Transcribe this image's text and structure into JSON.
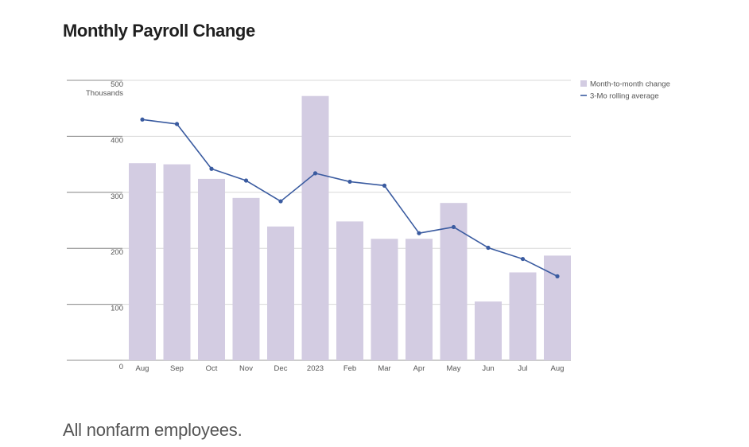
{
  "title": "Monthly Payroll Change",
  "caption": "All nonfarm employees.",
  "colors": {
    "bar": "#d3cce2",
    "line": "#3a5ba0",
    "grid": "#d8d8d8",
    "axis": "#555555"
  },
  "chart_data": {
    "type": "bar",
    "categories": [
      "Aug",
      "Sep",
      "Oct",
      "Nov",
      "Dec",
      "2023",
      "Feb",
      "Mar",
      "Apr",
      "May",
      "Jun",
      "Jul",
      "Aug"
    ],
    "series": [
      {
        "name": "Month-to-month change",
        "type": "bar",
        "values": [
          352,
          350,
          324,
          290,
          239,
          472,
          248,
          217,
          217,
          281,
          105,
          157,
          187
        ]
      },
      {
        "name": "3-Mo rolling average",
        "type": "line",
        "values": [
          430,
          422,
          342,
          321,
          284,
          334,
          319,
          312,
          227,
          238,
          201,
          181,
          150
        ]
      }
    ],
    "yticks": [
      "0",
      "100",
      "200",
      "300",
      "400",
      "500"
    ],
    "ylabel": "Thousands",
    "ylim": [
      0,
      500
    ],
    "grid": true,
    "legend_position": "top-right"
  }
}
